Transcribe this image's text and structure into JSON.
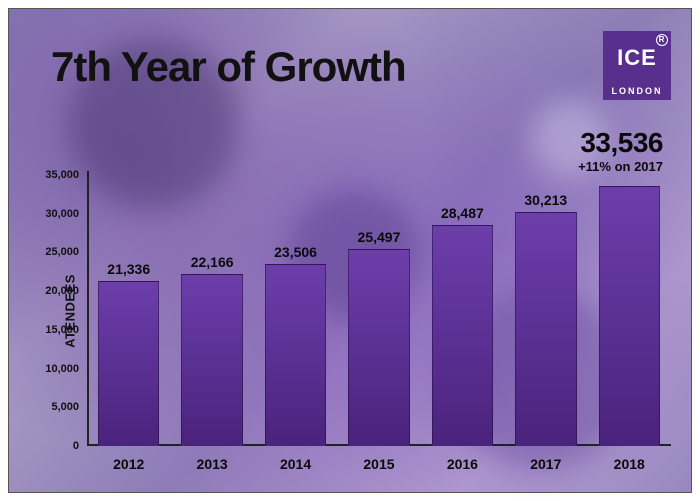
{
  "title": "7th Year of Growth",
  "logo": {
    "text": "ICE",
    "sub": "LONDON"
  },
  "callout": {
    "value": "33,536",
    "sub": "+11% on 2017"
  },
  "chart": {
    "type": "bar",
    "ylabel": "ATENDEES",
    "ymax": 35000,
    "ytick_step": 5000,
    "yticks": [
      "0",
      "5,000",
      "10,000",
      "15,000",
      "20,000",
      "25,000",
      "30,000",
      "35,000"
    ],
    "categories": [
      "2012",
      "2013",
      "2014",
      "2015",
      "2016",
      "2017",
      "2018"
    ],
    "values": [
      21336,
      22166,
      23506,
      25497,
      28487,
      30213,
      33536
    ],
    "value_labels": [
      "21,336",
      "22,166",
      "23,506",
      "25,497",
      "28,487",
      "30,213",
      "33,536"
    ],
    "show_last_label_on_bar": false,
    "bar_color_top": "#6d3db0",
    "bar_color_bottom": "#4b2280",
    "axis_color": "#222222",
    "title_fontsize": 42,
    "label_fontsize": 14,
    "tick_fontsize": 11,
    "background_overlay": "#8d7fb7"
  }
}
